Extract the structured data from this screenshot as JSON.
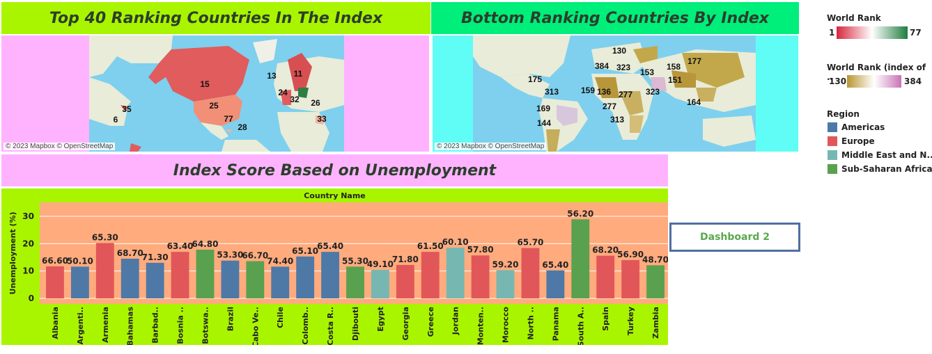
{
  "titles": {
    "top_map": "Top 40 Ranking  Countries In The Index",
    "bottom_map": "Bottom Ranking Countries By Index",
    "unemployment": "Index Score Based on Unemployment"
  },
  "maps": {
    "attribution": "© 2023 Mapbox © OpenStreetMap",
    "top_labels": [
      "15",
      "25",
      "77",
      "28",
      "35",
      "6",
      "13",
      "11",
      "24",
      "32",
      "26",
      "33"
    ],
    "bottom_labels": [
      "130",
      "384",
      "323",
      "158",
      "177",
      "153",
      "151",
      "323",
      "164",
      "175",
      "313",
      "159",
      "136",
      "277",
      "277",
      "313",
      "169",
      "144"
    ]
  },
  "legends": {
    "world_rank": {
      "title": "World Rank",
      "min": "1",
      "max": "77",
      "colors": [
        "#d7263d",
        "#ffffff",
        "#1e7d3e"
      ]
    },
    "world_rank_index": {
      "title": "World Rank (index of ..",
      "min": "130",
      "max": "384",
      "colors": [
        "#b89630",
        "#ffffff",
        "#c873b6"
      ]
    },
    "region": {
      "title": "Region",
      "items": [
        {
          "label": "Americas",
          "color": "#4e79a7"
        },
        {
          "label": "Europe",
          "color": "#e15759"
        },
        {
          "label": "Middle East and N..",
          "color": "#76b7b2"
        },
        {
          "label": "Sub-Saharan Africa",
          "color": "#59a14f"
        }
      ]
    }
  },
  "dashboard_button": {
    "label": "Dashboard 2"
  },
  "chart_data": {
    "type": "bar",
    "title": "Country Name",
    "xlabel": "",
    "ylabel": "Unemployment (%)",
    "ylim": [
      0,
      35
    ],
    "yticks": [
      "0",
      "10",
      "20",
      "30"
    ],
    "categories": [
      "Albania",
      "Argenti..",
      "Armenia",
      "Bahamas",
      "Barbad..",
      "Bosnia ..",
      "Botswa..",
      "Brazil",
      "Cabo Ve..",
      "Chile",
      "Colomb..",
      "Costa R..",
      "Djibouti",
      "Egypt",
      "Georgia",
      "Greece",
      "Jordan",
      "Monten..",
      "Morocco",
      "North ..",
      "Panama",
      "South A..",
      "Spain",
      "Turkey",
      "Zambia"
    ],
    "values": [
      11.7,
      11.6,
      20.2,
      14.5,
      13.0,
      17.0,
      17.8,
      13.8,
      13.6,
      11.6,
      15.3,
      17.0,
      11.6,
      10.4,
      12.2,
      17.0,
      18.5,
      15.7,
      10.3,
      18.4,
      10.2,
      28.9,
      15.6,
      14.0,
      12.1
    ],
    "labels": [
      "66.60",
      "50.10",
      "65.30",
      "68.70",
      "71.30",
      "63.40",
      "64.80",
      "53.30",
      "66.70",
      "74.40",
      "65.10",
      "65.40",
      "55.30",
      "49.10",
      "71.80",
      "61.50",
      "60.10",
      "57.80",
      "59.20",
      "65.70",
      "65.40",
      "56.20",
      "68.20",
      "56.90",
      "48.70"
    ],
    "regions": [
      "Europe",
      "Americas",
      "Europe",
      "Americas",
      "Americas",
      "Europe",
      "Sub-Saharan Africa",
      "Americas",
      "Sub-Saharan Africa",
      "Americas",
      "Americas",
      "Americas",
      "Sub-Saharan Africa",
      "Middle East and N..",
      "Europe",
      "Europe",
      "Middle East and N..",
      "Europe",
      "Middle East and N..",
      "Europe",
      "Americas",
      "Sub-Saharan Africa",
      "Europe",
      "Europe",
      "Sub-Saharan Africa"
    ],
    "plot_bg": "#ffab7e",
    "grid": true
  }
}
